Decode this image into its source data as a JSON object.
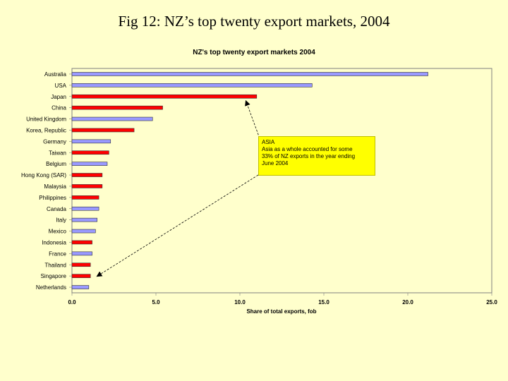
{
  "slide_title": "Fig 12: NZ’s top twenty export markets, 2004",
  "chart_data": {
    "type": "bar",
    "orientation": "horizontal",
    "title": "NZ's top twenty export markets 2004",
    "xlabel": "Share of total exports, fob",
    "ylabel": "",
    "xlim": [
      0,
      25
    ],
    "xticks": [
      "0.0",
      "5.0",
      "10.0",
      "15.0",
      "20.0",
      "25.0"
    ],
    "grid": false,
    "categories": [
      "Australia",
      "USA",
      "Japan",
      "China",
      "United Kingdom",
      "Korea, Republic",
      "Germany",
      "Taiwan",
      "Belgium",
      "Hong Kong (SAR)",
      "Malaysia",
      "Philippines",
      "Canada",
      "Italy",
      "Mexico",
      "Indonesia",
      "France",
      "Thailand",
      "Singapore",
      "Netherlands"
    ],
    "values": [
      21.2,
      14.3,
      11.0,
      5.4,
      4.8,
      3.7,
      2.3,
      2.2,
      2.1,
      1.8,
      1.8,
      1.6,
      1.6,
      1.5,
      1.4,
      1.2,
      1.2,
      1.1,
      1.1,
      1.0
    ],
    "asia": [
      false,
      false,
      true,
      true,
      false,
      true,
      false,
      true,
      false,
      true,
      true,
      true,
      false,
      false,
      false,
      true,
      false,
      true,
      true,
      false
    ],
    "colors": {
      "asia": "#ff0000",
      "other": "#9999ff"
    },
    "annotation": {
      "title": "ASIA",
      "lines": [
        "Asia as a whole accounted for some",
        "33% of NZ exports in the year ending",
        "June 2004"
      ]
    }
  }
}
